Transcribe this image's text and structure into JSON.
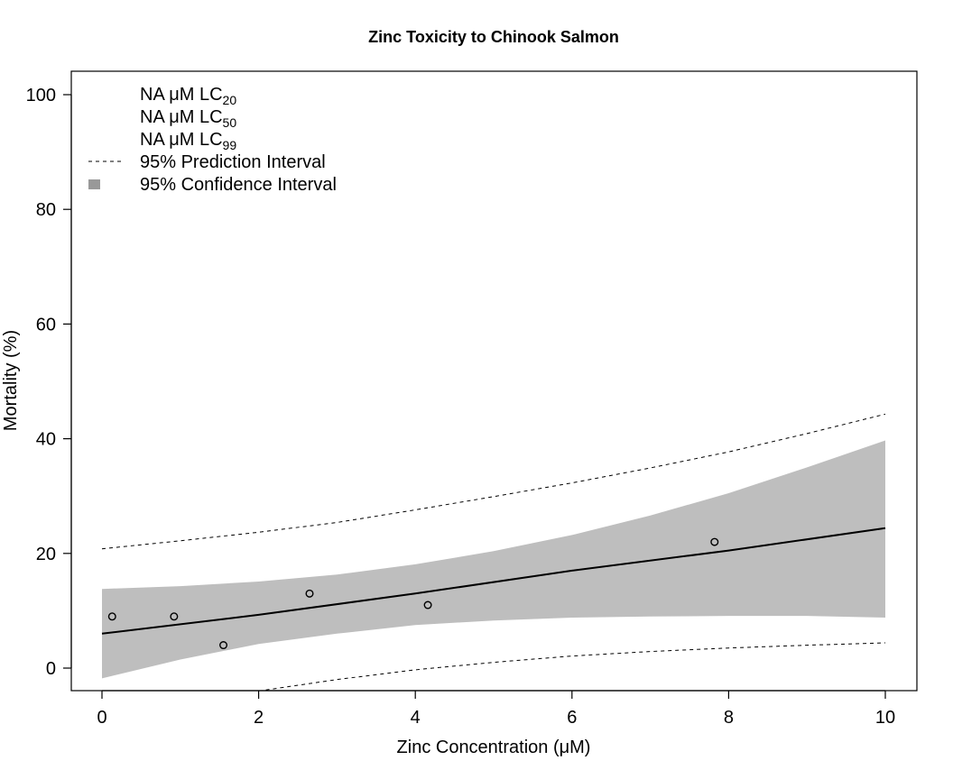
{
  "chart_data": {
    "type": "scatter",
    "title": "Zinc Toxicity to Chinook Salmon",
    "xlabel": "Zinc Concentration (μM)",
    "ylabel": "Mortality (%)",
    "xlim": [
      0,
      10
    ],
    "ylim": [
      0,
      100
    ],
    "x_ticks": [
      "0",
      "2",
      "4",
      "6",
      "8",
      "10"
    ],
    "y_ticks": [
      "0",
      "20",
      "40",
      "60",
      "80",
      "100"
    ],
    "grid": false,
    "legend_position": "top-left",
    "colors": {
      "line": "#000000",
      "confidence_band": "#bebebe",
      "legend_ci": "#999999"
    },
    "points": [
      {
        "x": 0.13,
        "y": 9
      },
      {
        "x": 0.92,
        "y": 9
      },
      {
        "x": 1.55,
        "y": 4
      },
      {
        "x": 2.65,
        "y": 13
      },
      {
        "x": 4.16,
        "y": 11
      },
      {
        "x": 7.82,
        "y": 22
      }
    ],
    "fit": {
      "x": [
        0,
        2,
        4,
        6,
        8,
        10
      ],
      "y": [
        6.0,
        9.3,
        13.0,
        17.0,
        20.5,
        24.4
      ]
    },
    "confidence_interval": {
      "x": [
        0,
        1,
        2,
        3,
        4,
        5,
        6,
        7,
        8,
        9,
        10
      ],
      "lower": [
        -1.8,
        1.5,
        4.2,
        6.0,
        7.5,
        8.3,
        8.8,
        9.0,
        9.1,
        9.1,
        8.8
      ],
      "upper": [
        13.8,
        14.3,
        15.1,
        16.3,
        18.1,
        20.4,
        23.2,
        26.6,
        30.5,
        35.0,
        39.7
      ]
    },
    "prediction_interval": {
      "x": [
        0,
        1,
        2,
        3,
        4,
        5,
        6,
        7,
        8,
        9,
        10
      ],
      "lower": [
        -8.5,
        -6.2,
        -4.0,
        -2.0,
        -0.3,
        1.0,
        2.1,
        2.9,
        3.5,
        4.0,
        4.4
      ],
      "upper": [
        20.8,
        22.2,
        23.7,
        25.4,
        27.6,
        29.9,
        32.3,
        34.9,
        37.7,
        40.9,
        44.3
      ]
    },
    "legend": [
      {
        "label": "NA μM LC",
        "sub": "20",
        "symbol": "none"
      },
      {
        "label": "NA μM LC",
        "sub": "50",
        "symbol": "none"
      },
      {
        "label": "NA μM LC",
        "sub": "99",
        "symbol": "none"
      },
      {
        "label": "95% Prediction Interval",
        "symbol": "dashed-line"
      },
      {
        "label": "95% Confidence Interval",
        "symbol": "grey-square"
      }
    ]
  }
}
